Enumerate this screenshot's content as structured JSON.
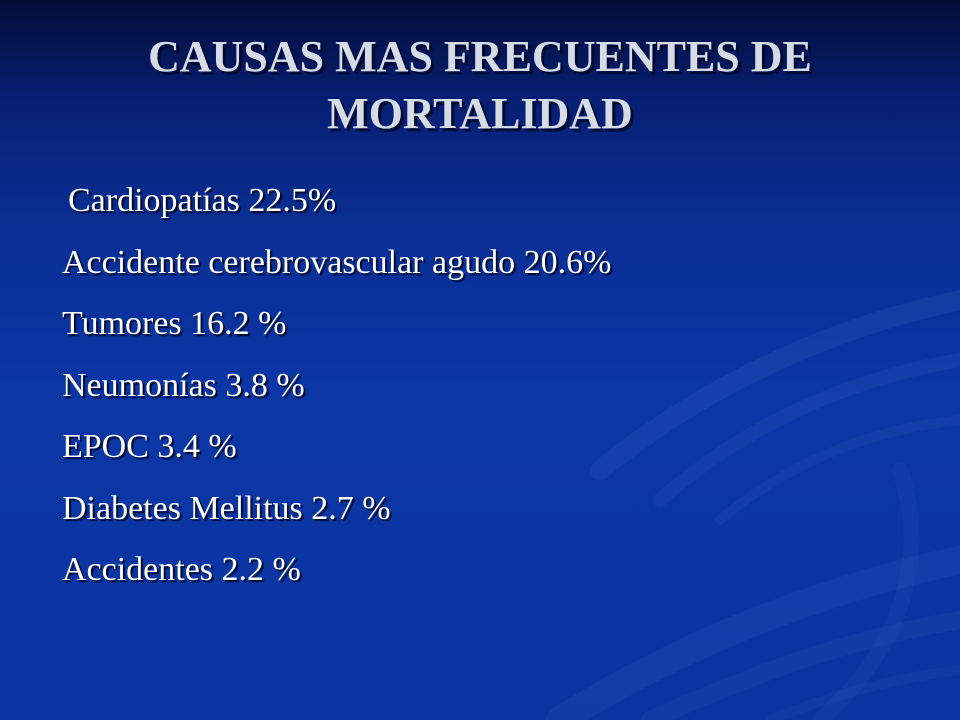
{
  "slide": {
    "title": "CAUSAS MAS FRECUENTES DE MORTALIDAD",
    "items": [
      "Cardiopatías 22.5%",
      "Accidente cerebrovascular agudo 20.6%",
      "Tumores 16.2 %",
      "Neumonías 3.8 %",
      "EPOC 3.4 %",
      "Diabetes Mellitus 2.7 %",
      "Accidentes 2.2 %"
    ]
  },
  "colors": {
    "background_top": "#030d38",
    "background_main": "#0b36a6",
    "title_text": "#d6dbe6",
    "body_text": "#ffffff"
  }
}
